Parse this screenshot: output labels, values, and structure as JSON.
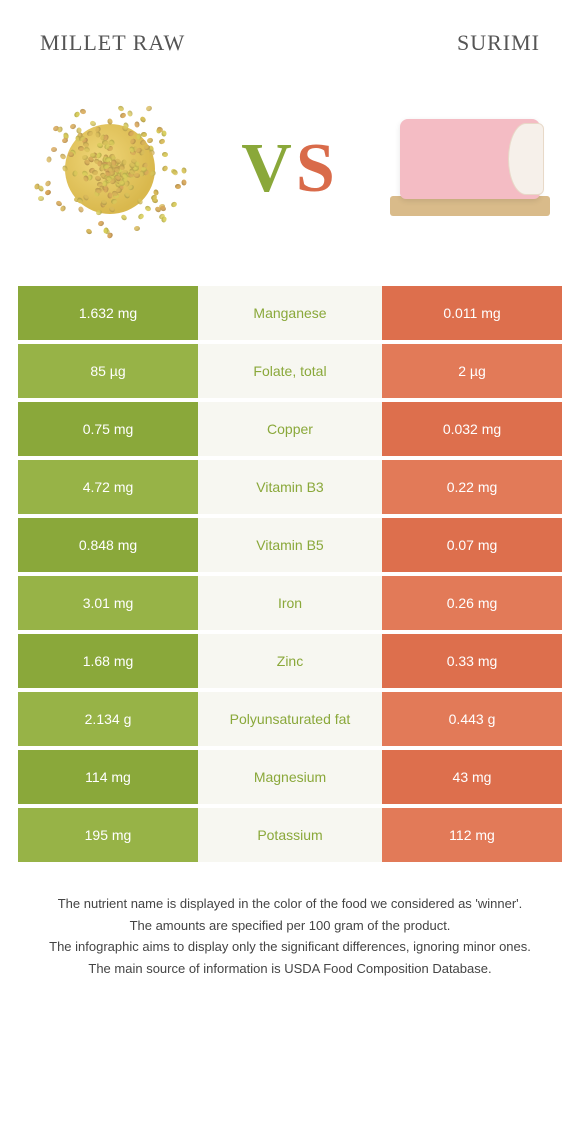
{
  "foods": {
    "left": {
      "title": "Millet raw",
      "color": "#8aa83a",
      "alt_color": "#97b347"
    },
    "right": {
      "title": "Surimi",
      "color": "#dd6f4d",
      "alt_color": "#e27a58"
    }
  },
  "vs_label": "VS",
  "table": {
    "mid_bg": "#f7f7f1",
    "winner_text_colors": {
      "left": "#8aa83a",
      "right": "#dd6f4d"
    },
    "rows": [
      {
        "left": "1.632 mg",
        "nutrient": "Manganese",
        "right": "0.011 mg",
        "winner": "left"
      },
      {
        "left": "85 µg",
        "nutrient": "Folate, total",
        "right": "2 µg",
        "winner": "left"
      },
      {
        "left": "0.75 mg",
        "nutrient": "Copper",
        "right": "0.032 mg",
        "winner": "left"
      },
      {
        "left": "4.72 mg",
        "nutrient": "Vitamin B3",
        "right": "0.22 mg",
        "winner": "left"
      },
      {
        "left": "0.848 mg",
        "nutrient": "Vitamin B5",
        "right": "0.07 mg",
        "winner": "left"
      },
      {
        "left": "3.01 mg",
        "nutrient": "Iron",
        "right": "0.26 mg",
        "winner": "left"
      },
      {
        "left": "1.68 mg",
        "nutrient": "Zinc",
        "right": "0.33 mg",
        "winner": "left"
      },
      {
        "left": "2.134 g",
        "nutrient": "Polyunsaturated fat",
        "right": "0.443 g",
        "winner": "left"
      },
      {
        "left": "114 mg",
        "nutrient": "Magnesium",
        "right": "43 mg",
        "winner": "left"
      },
      {
        "left": "195 mg",
        "nutrient": "Potassium",
        "right": "112 mg",
        "winner": "left"
      }
    ]
  },
  "footnotes": [
    "The nutrient name is displayed in the color of the food we considered as 'winner'.",
    "The amounts are specified per 100 gram of the product.",
    "The infographic aims to display only the significant differences, ignoring minor ones.",
    "The main source of information is USDA Food Composition Database."
  ]
}
